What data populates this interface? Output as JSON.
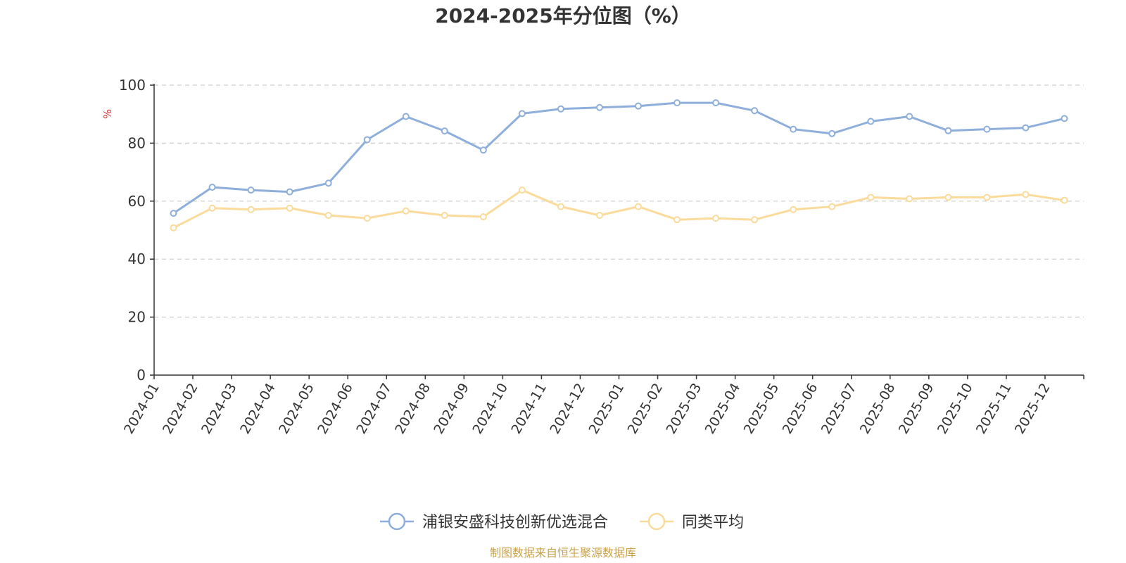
{
  "chart_data": {
    "type": "line",
    "title": "2024-2025年分位图（%）",
    "ylabel": "%",
    "ylim": [
      0,
      100
    ],
    "yticks": [
      0,
      20,
      40,
      60,
      80,
      100
    ],
    "grid": true,
    "legend_position": "bottom",
    "categories": [
      "2024-01",
      "2024-02",
      "2024-03",
      "2024-04",
      "2024-05",
      "2024-06",
      "2024-07",
      "2024-08",
      "2024-09",
      "2024-10",
      "2024-11",
      "2024-12",
      "2025-01",
      "2025-02",
      "2025-03",
      "2025-04",
      "2025-05",
      "2025-06",
      "2025-07",
      "2025-08",
      "2025-09",
      "2025-10",
      "2025-11",
      "2025-12"
    ],
    "series": [
      {
        "name": "浦银安盛科技创新优选混合",
        "color": "#8eaedb",
        "values": [
          55.8,
          64.8,
          63.8,
          63.2,
          66.2,
          81.2,
          89.2,
          84.2,
          77.6,
          90.2,
          91.8,
          92.3,
          92.8,
          93.9,
          93.9,
          91.2,
          84.8,
          83.3,
          87.5,
          89.2,
          84.3,
          84.8,
          85.3,
          88.5
        ]
      },
      {
        "name": "同类平均",
        "color": "#fadb9b",
        "values": [
          50.8,
          57.6,
          57.1,
          57.6,
          55.1,
          54.1,
          56.6,
          55.1,
          54.6,
          63.8,
          58.1,
          55.1,
          58.1,
          53.6,
          54.1,
          53.6,
          57.1,
          58.1,
          61.3,
          60.8,
          61.3,
          61.3,
          62.3,
          60.3
        ]
      }
    ],
    "source_note": "制图数据来自恒生聚源数据库"
  },
  "colors": {
    "axis": "#333333",
    "grid": "#cccccc",
    "unit_label": "#e03030",
    "source_note": "#c9a24a"
  }
}
